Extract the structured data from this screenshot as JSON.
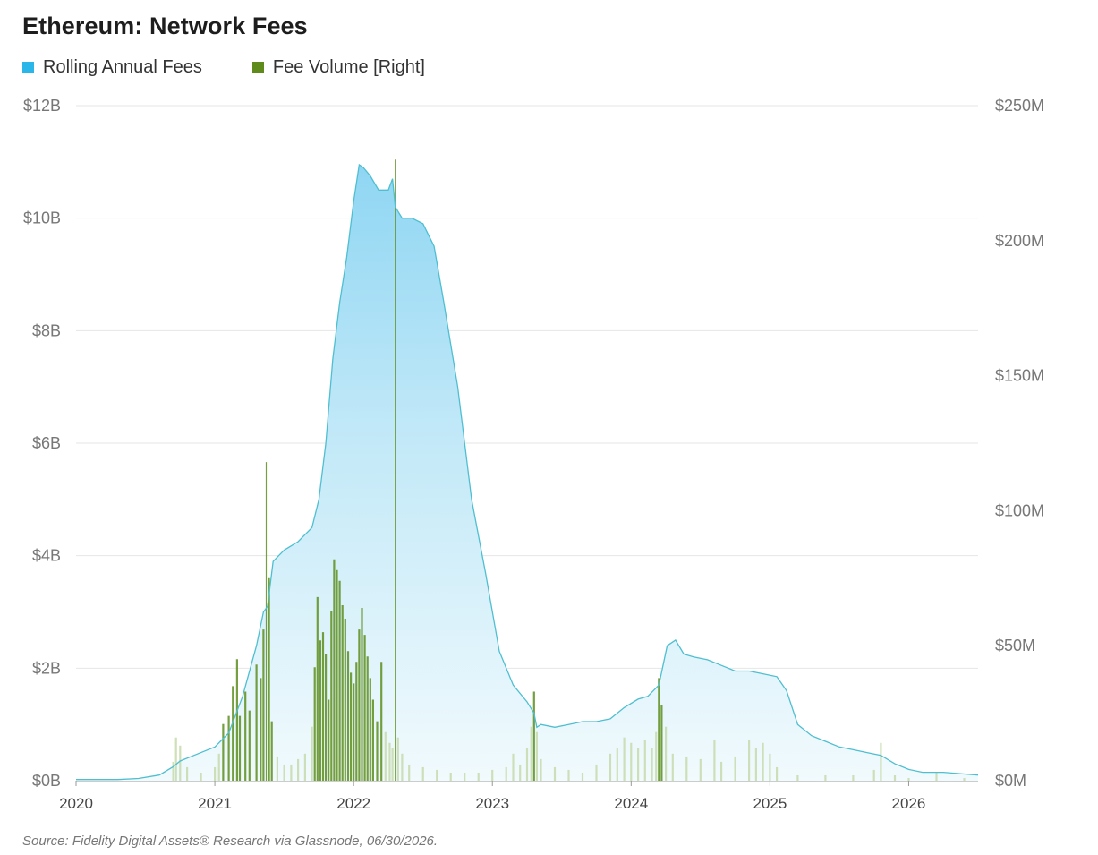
{
  "chart_data": {
    "type": "area",
    "title": "Ethereum: Network Fees",
    "source": "Source: Fidelity Digital Assets® Research via Glassnode, 06/30/2026.",
    "x_ticks": [
      "2020",
      "2021",
      "2022",
      "2023",
      "2024",
      "2025",
      "2026"
    ],
    "y_left_ticks": [
      "$0B",
      "$2B",
      "$4B",
      "$6B",
      "$8B",
      "$10B",
      "$12B"
    ],
    "y_right_ticks": [
      "$0M",
      "$50M",
      "$100M",
      "$150M",
      "$200M",
      "$250M"
    ],
    "y_left_lim": [
      0,
      12
    ],
    "y_left_unit": "billions USD",
    "y_right_lim": [
      0,
      250
    ],
    "y_right_unit": "millions USD",
    "x_lim": [
      2020.0,
      2026.5
    ],
    "grid": true,
    "legend_position": "top-left",
    "colors": {
      "rolling_line": "#4fbfd0",
      "rolling_fill_top": "#8fd6f3",
      "rolling_fill_bottom": "#f1fafd",
      "volume": "#5e8f1f",
      "volume_light": "#c9ddb1",
      "legend_rolling": "#2bb6ea",
      "legend_volume": "#5f8a1c"
    },
    "series": [
      {
        "name": "Rolling Annual Fees",
        "axis": "left",
        "style": "area",
        "points": [
          [
            2020.0,
            0.02
          ],
          [
            2020.3,
            0.02
          ],
          [
            2020.45,
            0.04
          ],
          [
            2020.6,
            0.1
          ],
          [
            2020.7,
            0.25
          ],
          [
            2020.75,
            0.35
          ],
          [
            2020.85,
            0.45
          ],
          [
            2021.0,
            0.6
          ],
          [
            2021.1,
            0.85
          ],
          [
            2021.2,
            1.5
          ],
          [
            2021.3,
            2.4
          ],
          [
            2021.35,
            3.0
          ],
          [
            2021.38,
            3.1
          ],
          [
            2021.42,
            3.9
          ],
          [
            2021.46,
            4.0
          ],
          [
            2021.5,
            4.1
          ],
          [
            2021.6,
            4.25
          ],
          [
            2021.7,
            4.5
          ],
          [
            2021.75,
            5.0
          ],
          [
            2021.8,
            6.0
          ],
          [
            2021.85,
            7.5
          ],
          [
            2021.9,
            8.5
          ],
          [
            2021.95,
            9.3
          ],
          [
            2022.0,
            10.3
          ],
          [
            2022.04,
            10.95
          ],
          [
            2022.07,
            10.9
          ],
          [
            2022.12,
            10.75
          ],
          [
            2022.18,
            10.5
          ],
          [
            2022.25,
            10.5
          ],
          [
            2022.28,
            10.7
          ],
          [
            2022.3,
            10.2
          ],
          [
            2022.35,
            10.0
          ],
          [
            2022.42,
            10.0
          ],
          [
            2022.5,
            9.9
          ],
          [
            2022.58,
            9.5
          ],
          [
            2022.65,
            8.5
          ],
          [
            2022.75,
            7.0
          ],
          [
            2022.85,
            5.0
          ],
          [
            2022.95,
            3.7
          ],
          [
            2023.05,
            2.3
          ],
          [
            2023.15,
            1.7
          ],
          [
            2023.25,
            1.4
          ],
          [
            2023.3,
            1.2
          ],
          [
            2023.32,
            0.95
          ],
          [
            2023.35,
            1.0
          ],
          [
            2023.45,
            0.95
          ],
          [
            2023.55,
            1.0
          ],
          [
            2023.65,
            1.05
          ],
          [
            2023.75,
            1.05
          ],
          [
            2023.85,
            1.1
          ],
          [
            2023.95,
            1.3
          ],
          [
            2024.05,
            1.45
          ],
          [
            2024.12,
            1.5
          ],
          [
            2024.2,
            1.7
          ],
          [
            2024.26,
            2.4
          ],
          [
            2024.32,
            2.5
          ],
          [
            2024.38,
            2.25
          ],
          [
            2024.45,
            2.2
          ],
          [
            2024.55,
            2.15
          ],
          [
            2024.65,
            2.05
          ],
          [
            2024.75,
            1.95
          ],
          [
            2024.85,
            1.95
          ],
          [
            2024.95,
            1.9
          ],
          [
            2025.05,
            1.85
          ],
          [
            2025.12,
            1.6
          ],
          [
            2025.2,
            1.0
          ],
          [
            2025.3,
            0.8
          ],
          [
            2025.4,
            0.7
          ],
          [
            2025.5,
            0.6
          ],
          [
            2025.6,
            0.55
          ],
          [
            2025.7,
            0.5
          ],
          [
            2025.8,
            0.45
          ],
          [
            2025.9,
            0.3
          ],
          [
            2026.0,
            0.2
          ],
          [
            2026.1,
            0.15
          ],
          [
            2026.25,
            0.15
          ],
          [
            2026.4,
            0.12
          ],
          [
            2026.5,
            0.1
          ]
        ]
      },
      {
        "name": "Fee Volume [Right]",
        "axis": "right",
        "style": "spikes",
        "points": [
          [
            2020.7,
            7
          ],
          [
            2020.72,
            16
          ],
          [
            2020.75,
            13
          ],
          [
            2020.8,
            5
          ],
          [
            2020.9,
            3
          ],
          [
            2021.0,
            5
          ],
          [
            2021.03,
            10
          ],
          [
            2021.06,
            21
          ],
          [
            2021.1,
            24
          ],
          [
            2021.13,
            35
          ],
          [
            2021.16,
            45
          ],
          [
            2021.18,
            24
          ],
          [
            2021.22,
            33
          ],
          [
            2021.25,
            26
          ],
          [
            2021.3,
            43
          ],
          [
            2021.33,
            38
          ],
          [
            2021.35,
            56
          ],
          [
            2021.37,
            118
          ],
          [
            2021.39,
            75
          ],
          [
            2021.41,
            22
          ],
          [
            2021.45,
            9
          ],
          [
            2021.5,
            6
          ],
          [
            2021.55,
            6
          ],
          [
            2021.6,
            8
          ],
          [
            2021.65,
            10
          ],
          [
            2021.7,
            20
          ],
          [
            2021.72,
            42
          ],
          [
            2021.74,
            68
          ],
          [
            2021.76,
            52
          ],
          [
            2021.78,
            55
          ],
          [
            2021.8,
            47
          ],
          [
            2021.82,
            30
          ],
          [
            2021.84,
            63
          ],
          [
            2021.86,
            82
          ],
          [
            2021.88,
            78
          ],
          [
            2021.9,
            74
          ],
          [
            2021.92,
            65
          ],
          [
            2021.94,
            60
          ],
          [
            2021.96,
            48
          ],
          [
            2021.98,
            40
          ],
          [
            2022.0,
            36
          ],
          [
            2022.02,
            44
          ],
          [
            2022.04,
            56
          ],
          [
            2022.06,
            64
          ],
          [
            2022.08,
            54
          ],
          [
            2022.1,
            46
          ],
          [
            2022.12,
            38
          ],
          [
            2022.14,
            30
          ],
          [
            2022.17,
            22
          ],
          [
            2022.2,
            44
          ],
          [
            2022.23,
            18
          ],
          [
            2022.26,
            14
          ],
          [
            2022.28,
            12
          ],
          [
            2022.3,
            230
          ],
          [
            2022.32,
            16
          ],
          [
            2022.35,
            10
          ],
          [
            2022.4,
            6
          ],
          [
            2022.5,
            5
          ],
          [
            2022.6,
            4
          ],
          [
            2022.7,
            3
          ],
          [
            2022.8,
            3
          ],
          [
            2022.9,
            3
          ],
          [
            2023.0,
            4
          ],
          [
            2023.1,
            5
          ],
          [
            2023.15,
            10
          ],
          [
            2023.2,
            6
          ],
          [
            2023.25,
            12
          ],
          [
            2023.28,
            20
          ],
          [
            2023.3,
            33
          ],
          [
            2023.32,
            18
          ],
          [
            2023.35,
            8
          ],
          [
            2023.45,
            5
          ],
          [
            2023.55,
            4
          ],
          [
            2023.65,
            3
          ],
          [
            2023.75,
            6
          ],
          [
            2023.85,
            10
          ],
          [
            2023.9,
            12
          ],
          [
            2023.95,
            16
          ],
          [
            2024.0,
            14
          ],
          [
            2024.05,
            12
          ],
          [
            2024.1,
            15
          ],
          [
            2024.15,
            12
          ],
          [
            2024.18,
            18
          ],
          [
            2024.2,
            38
          ],
          [
            2024.22,
            28
          ],
          [
            2024.25,
            20
          ],
          [
            2024.3,
            10
          ],
          [
            2024.4,
            9
          ],
          [
            2024.5,
            8
          ],
          [
            2024.6,
            15
          ],
          [
            2024.65,
            7
          ],
          [
            2024.75,
            9
          ],
          [
            2024.85,
            15
          ],
          [
            2024.9,
            12
          ],
          [
            2024.95,
            14
          ],
          [
            2025.0,
            10
          ],
          [
            2025.05,
            5
          ],
          [
            2025.2,
            2
          ],
          [
            2025.4,
            2
          ],
          [
            2025.6,
            2
          ],
          [
            2025.75,
            4
          ],
          [
            2025.8,
            14
          ],
          [
            2025.9,
            2
          ],
          [
            2026.0,
            1
          ],
          [
            2026.2,
            3
          ],
          [
            2026.4,
            1
          ]
        ]
      }
    ]
  },
  "legend": [
    {
      "label": "Rolling Annual Fees",
      "color": "#2bb6ea"
    },
    {
      "label": "Fee Volume [Right]",
      "color": "#5f8a1c"
    }
  ]
}
